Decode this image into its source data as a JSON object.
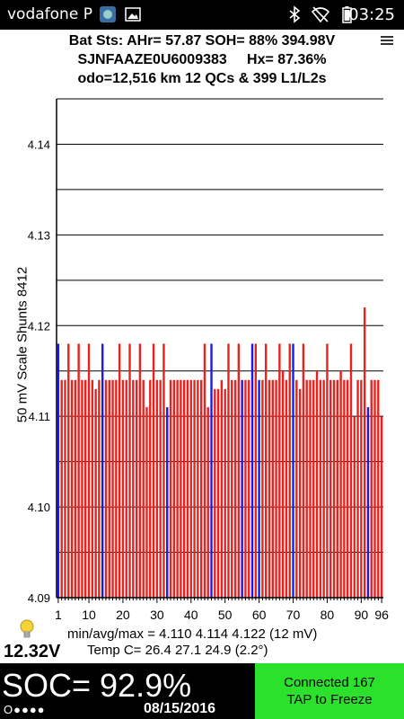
{
  "status_bar": {
    "carrier": "vodafone P",
    "time": "03:25",
    "icons": [
      "android-icon",
      "image-icon",
      "bluetooth-icon",
      "wifi-off-icon",
      "battery-icon"
    ]
  },
  "header": {
    "line1": "Bat Sts: AHr= 57.87 SOH= 88% 394.98V",
    "line2": "SJNFAAZE0U6009383     Hx= 87.36%",
    "line3": "odo=12,516 km 12 QCs & 399 L1/L2s"
  },
  "axis_title": "50 mV Scale   Shunts 8412",
  "stats": {
    "minavgmax": "min/avg/max = 4.110 4.114 4.122  (12 mV)",
    "temp": "Temp C= 26.4  27.1  24.9  (2.2°)"
  },
  "voltage_12v": "12.32V",
  "soc": {
    "label": "SOC= 92.9%",
    "dots": "O●●●●",
    "date": "08/15/2016"
  },
  "connect_button": {
    "line1": "Connected 167",
    "line2": "TAP to Freeze"
  },
  "colors": {
    "normal_bar": "#e8221e",
    "shunt_bar": "#1a1aee",
    "connect_green": "#2ce12c"
  },
  "chart_data": {
    "type": "bar",
    "ylim": [
      4.09,
      4.145
    ],
    "ytick_labels": [
      "4.09",
      "4.10",
      "4.11",
      "4.12",
      "4.13",
      "4.14"
    ],
    "xtick_labels": [
      "1",
      "10",
      "20",
      "30",
      "40",
      "50",
      "60",
      "70",
      "80",
      "90",
      "96"
    ],
    "xtick_positions": [
      1,
      10,
      20,
      30,
      40,
      50,
      60,
      70,
      80,
      90,
      96
    ],
    "cells": [
      {
        "cell": 1,
        "v": 4.118,
        "shunt": true
      },
      {
        "cell": 2,
        "v": 4.114,
        "shunt": false
      },
      {
        "cell": 3,
        "v": 4.114,
        "shunt": false
      },
      {
        "cell": 4,
        "v": 4.118,
        "shunt": false
      },
      {
        "cell": 5,
        "v": 4.114,
        "shunt": false
      },
      {
        "cell": 6,
        "v": 4.114,
        "shunt": false
      },
      {
        "cell": 7,
        "v": 4.118,
        "shunt": false
      },
      {
        "cell": 8,
        "v": 4.114,
        "shunt": false
      },
      {
        "cell": 9,
        "v": 4.114,
        "shunt": false
      },
      {
        "cell": 10,
        "v": 4.118,
        "shunt": false
      },
      {
        "cell": 11,
        "v": 4.114,
        "shunt": false
      },
      {
        "cell": 12,
        "v": 4.113,
        "shunt": false
      },
      {
        "cell": 13,
        "v": 4.114,
        "shunt": false
      },
      {
        "cell": 14,
        "v": 4.118,
        "shunt": true
      },
      {
        "cell": 15,
        "v": 4.114,
        "shunt": false
      },
      {
        "cell": 16,
        "v": 4.114,
        "shunt": false
      },
      {
        "cell": 17,
        "v": 4.114,
        "shunt": false
      },
      {
        "cell": 18,
        "v": 4.114,
        "shunt": false
      },
      {
        "cell": 19,
        "v": 4.118,
        "shunt": false
      },
      {
        "cell": 20,
        "v": 4.114,
        "shunt": false
      },
      {
        "cell": 21,
        "v": 4.114,
        "shunt": false
      },
      {
        "cell": 22,
        "v": 4.118,
        "shunt": false
      },
      {
        "cell": 23,
        "v": 4.114,
        "shunt": false
      },
      {
        "cell": 24,
        "v": 4.114,
        "shunt": false
      },
      {
        "cell": 25,
        "v": 4.118,
        "shunt": false
      },
      {
        "cell": 26,
        "v": 4.114,
        "shunt": false
      },
      {
        "cell": 27,
        "v": 4.111,
        "shunt": false
      },
      {
        "cell": 28,
        "v": 4.114,
        "shunt": false
      },
      {
        "cell": 29,
        "v": 4.118,
        "shunt": false
      },
      {
        "cell": 30,
        "v": 4.114,
        "shunt": false
      },
      {
        "cell": 31,
        "v": 4.114,
        "shunt": false
      },
      {
        "cell": 32,
        "v": 4.118,
        "shunt": false
      },
      {
        "cell": 33,
        "v": 4.111,
        "shunt": true
      },
      {
        "cell": 34,
        "v": 4.114,
        "shunt": false
      },
      {
        "cell": 35,
        "v": 4.114,
        "shunt": false
      },
      {
        "cell": 36,
        "v": 4.114,
        "shunt": false
      },
      {
        "cell": 37,
        "v": 4.114,
        "shunt": false
      },
      {
        "cell": 38,
        "v": 4.114,
        "shunt": false
      },
      {
        "cell": 39,
        "v": 4.114,
        "shunt": false
      },
      {
        "cell": 40,
        "v": 4.114,
        "shunt": false
      },
      {
        "cell": 41,
        "v": 4.114,
        "shunt": false
      },
      {
        "cell": 42,
        "v": 4.114,
        "shunt": false
      },
      {
        "cell": 43,
        "v": 4.114,
        "shunt": false
      },
      {
        "cell": 44,
        "v": 4.118,
        "shunt": false
      },
      {
        "cell": 45,
        "v": 4.111,
        "shunt": false
      },
      {
        "cell": 46,
        "v": 4.118,
        "shunt": true
      },
      {
        "cell": 47,
        "v": 4.113,
        "shunt": false
      },
      {
        "cell": 48,
        "v": 4.113,
        "shunt": false
      },
      {
        "cell": 49,
        "v": 4.114,
        "shunt": false
      },
      {
        "cell": 50,
        "v": 4.113,
        "shunt": false
      },
      {
        "cell": 51,
        "v": 4.118,
        "shunt": false
      },
      {
        "cell": 52,
        "v": 4.114,
        "shunt": false
      },
      {
        "cell": 53,
        "v": 4.114,
        "shunt": false
      },
      {
        "cell": 54,
        "v": 4.118,
        "shunt": false
      },
      {
        "cell": 55,
        "v": 4.114,
        "shunt": true
      },
      {
        "cell": 56,
        "v": 4.114,
        "shunt": false
      },
      {
        "cell": 57,
        "v": 4.114,
        "shunt": false
      },
      {
        "cell": 58,
        "v": 4.118,
        "shunt": true
      },
      {
        "cell": 59,
        "v": 4.118,
        "shunt": false
      },
      {
        "cell": 60,
        "v": 4.114,
        "shunt": true
      },
      {
        "cell": 61,
        "v": 4.114,
        "shunt": false
      },
      {
        "cell": 62,
        "v": 4.118,
        "shunt": false
      },
      {
        "cell": 63,
        "v": 4.114,
        "shunt": false
      },
      {
        "cell": 64,
        "v": 4.114,
        "shunt": false
      },
      {
        "cell": 65,
        "v": 4.114,
        "shunt": false
      },
      {
        "cell": 66,
        "v": 4.118,
        "shunt": false
      },
      {
        "cell": 67,
        "v": 4.115,
        "shunt": false
      },
      {
        "cell": 68,
        "v": 4.114,
        "shunt": false
      },
      {
        "cell": 69,
        "v": 4.118,
        "shunt": false
      },
      {
        "cell": 70,
        "v": 4.118,
        "shunt": true
      },
      {
        "cell": 71,
        "v": 4.114,
        "shunt": false
      },
      {
        "cell": 72,
        "v": 4.113,
        "shunt": false
      },
      {
        "cell": 73,
        "v": 4.118,
        "shunt": false
      },
      {
        "cell": 74,
        "v": 4.114,
        "shunt": false
      },
      {
        "cell": 75,
        "v": 4.114,
        "shunt": false
      },
      {
        "cell": 76,
        "v": 4.114,
        "shunt": false
      },
      {
        "cell": 77,
        "v": 4.115,
        "shunt": false
      },
      {
        "cell": 78,
        "v": 4.114,
        "shunt": false
      },
      {
        "cell": 79,
        "v": 4.114,
        "shunt": false
      },
      {
        "cell": 80,
        "v": 4.118,
        "shunt": false
      },
      {
        "cell": 81,
        "v": 4.114,
        "shunt": false
      },
      {
        "cell": 82,
        "v": 4.114,
        "shunt": false
      },
      {
        "cell": 83,
        "v": 4.114,
        "shunt": false
      },
      {
        "cell": 84,
        "v": 4.115,
        "shunt": false
      },
      {
        "cell": 85,
        "v": 4.114,
        "shunt": false
      },
      {
        "cell": 86,
        "v": 4.114,
        "shunt": false
      },
      {
        "cell": 87,
        "v": 4.118,
        "shunt": false
      },
      {
        "cell": 88,
        "v": 4.11,
        "shunt": false
      },
      {
        "cell": 89,
        "v": 4.114,
        "shunt": false
      },
      {
        "cell": 90,
        "v": 4.114,
        "shunt": false
      },
      {
        "cell": 91,
        "v": 4.122,
        "shunt": false
      },
      {
        "cell": 92,
        "v": 4.111,
        "shunt": true
      },
      {
        "cell": 93,
        "v": 4.114,
        "shunt": false
      },
      {
        "cell": 94,
        "v": 4.114,
        "shunt": false
      },
      {
        "cell": 95,
        "v": 4.114,
        "shunt": false
      },
      {
        "cell": 96,
        "v": 4.11,
        "shunt": false
      }
    ]
  }
}
